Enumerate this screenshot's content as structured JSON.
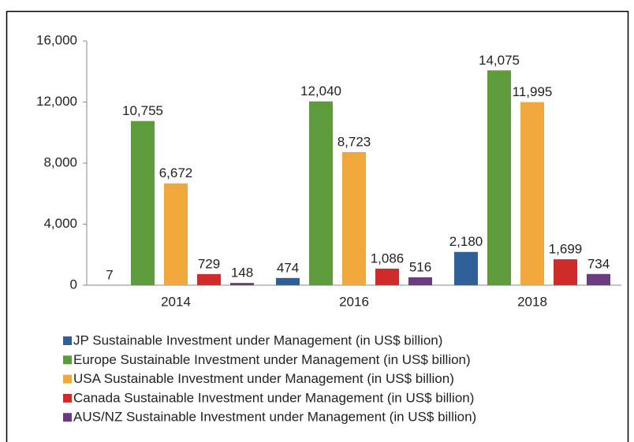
{
  "chart_data": {
    "type": "bar",
    "categories": [
      "2014",
      "2016",
      "2018"
    ],
    "series": [
      {
        "name": "JP Sustainable Investment under Management (in US$ billion)",
        "color": "#2f5f98",
        "values": [
          7,
          474,
          2180
        ],
        "value_labels": [
          "7",
          "474",
          "2,180"
        ]
      },
      {
        "name": "Europe Sustainable Investment under Management (in US$ billion)",
        "color": "#5e9b3d",
        "values": [
          10755,
          12040,
          14075
        ],
        "value_labels": [
          "10,755",
          "12,040",
          "14,075"
        ]
      },
      {
        "name": "USA Sustainable Investment under Management (in US$ billion)",
        "color": "#f0a83c",
        "values": [
          6672,
          8723,
          11995
        ],
        "value_labels": [
          "6,672",
          "8,723",
          "11,995"
        ]
      },
      {
        "name": "Canada Sustainable Investment under Management (in US$ billion)",
        "color": "#d02b2b",
        "values": [
          729,
          1086,
          1699
        ],
        "value_labels": [
          "729",
          "1,086",
          "1,699"
        ]
      },
      {
        "name": "AUS/NZ Sustainable Investment under Management (in US$ billion)",
        "color": "#6a3b7e",
        "values": [
          148,
          516,
          734
        ],
        "value_labels": [
          "148",
          "516",
          "734"
        ]
      }
    ],
    "ylim": [
      0,
      16000
    ],
    "yticks": [
      0,
      {
        "value": 4000,
        "label": "4,000"
      },
      {
        "value": 8000,
        "label": "8,000"
      },
      {
        "value": 12000,
        "label": "12,000"
      },
      {
        "value": 16000,
        "label": "16,000"
      }
    ],
    "grid": false
  }
}
